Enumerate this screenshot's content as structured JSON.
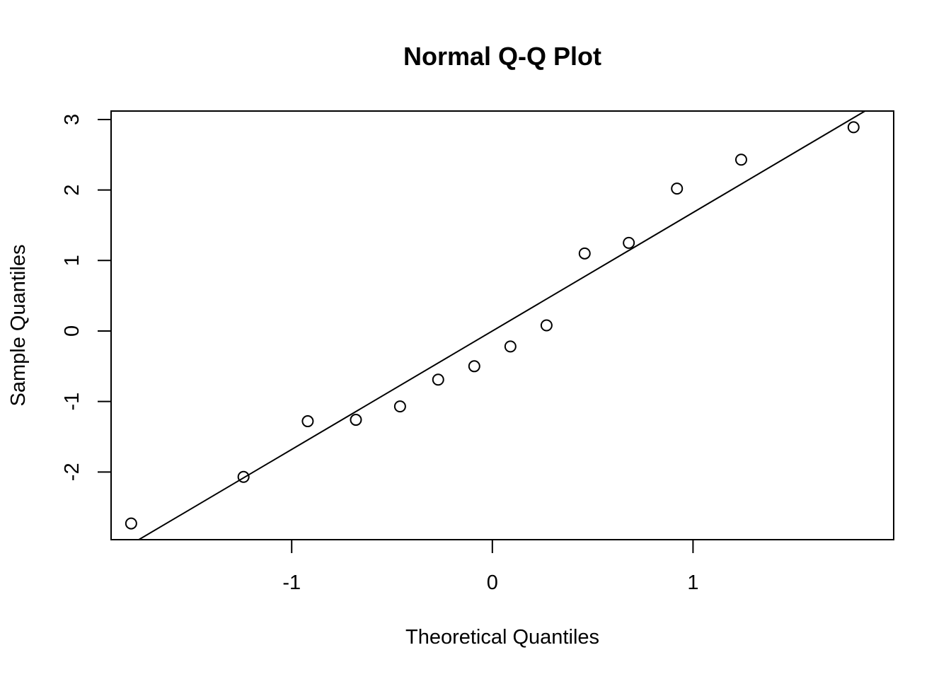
{
  "chart_data": {
    "type": "scatter",
    "title": "Normal Q-Q Plot",
    "xlabel": "Theoretical Quantiles",
    "ylabel": "Sample Quantiles",
    "xlim": [
      -1.9,
      2.0
    ],
    "ylim": [
      -2.96,
      3.12
    ],
    "x_ticks": [
      -1,
      0,
      1
    ],
    "x_tick_labels": [
      "-1",
      "0",
      "1"
    ],
    "y_ticks": [
      -2,
      -1,
      0,
      1,
      2,
      3
    ],
    "y_tick_labels": [
      "-2",
      "-1",
      "0",
      "1",
      "2",
      "3"
    ],
    "grid": false,
    "legend": "none",
    "points": [
      {
        "x": -1.8,
        "y": -2.73
      },
      {
        "x": -1.24,
        "y": -2.07
      },
      {
        "x": -0.92,
        "y": -1.28
      },
      {
        "x": -0.68,
        "y": -1.26
      },
      {
        "x": -0.46,
        "y": -1.07
      },
      {
        "x": -0.27,
        "y": -0.69
      },
      {
        "x": -0.09,
        "y": -0.5
      },
      {
        "x": 0.09,
        "y": -0.22
      },
      {
        "x": 0.27,
        "y": 0.08
      },
      {
        "x": 0.46,
        "y": 1.1
      },
      {
        "x": 0.68,
        "y": 1.25
      },
      {
        "x": 0.92,
        "y": 2.02
      },
      {
        "x": 1.24,
        "y": 2.43
      },
      {
        "x": 1.8,
        "y": 2.89
      }
    ],
    "reference_line": {
      "slope": 1.68,
      "intercept": 0.0
    },
    "colors": {
      "points": "#000000",
      "line": "#000000",
      "background": "#ffffff"
    }
  }
}
